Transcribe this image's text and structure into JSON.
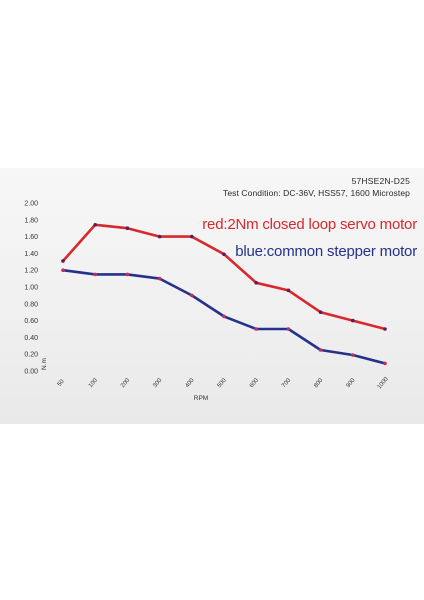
{
  "chart_data": {
    "type": "line",
    "title": "57HSE2N-D25",
    "subtitle": "Test Condition: DC-36V,  HSS57,   1600 Microstep",
    "xlabel": "RPM",
    "ylabel": "N.m",
    "categories": [
      "50",
      "100",
      "200",
      "300",
      "400",
      "500",
      "600",
      "700",
      "800",
      "900",
      "1000"
    ],
    "ylim": [
      0,
      2.0
    ],
    "yticks": [
      "0.00",
      "0.20",
      "0.40",
      "0.60",
      "0.80",
      "1.00",
      "1.20",
      "1.40",
      "1.60",
      "1.80",
      "2.00"
    ],
    "grid": false,
    "series": [
      {
        "name": "red:2Nm closed loop servo motor",
        "color": "#d8282e",
        "values": [
          1.31,
          1.74,
          1.7,
          1.6,
          1.6,
          1.39,
          1.05,
          0.96,
          0.7,
          0.6,
          0.5
        ]
      },
      {
        "name": "blue:common stepper motor",
        "color": "#24328c",
        "values": [
          1.2,
          1.15,
          1.15,
          1.1,
          0.9,
          0.65,
          0.5,
          0.5,
          0.25,
          0.19,
          0.09
        ]
      }
    ]
  }
}
